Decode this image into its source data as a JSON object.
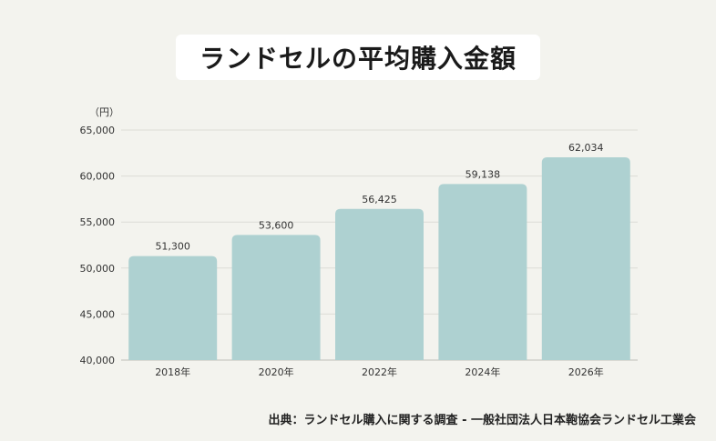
{
  "title": "ランドセルの平均購入金額",
  "source": "出典：ランドセル購入に関する調査 - 一般社団法人日本鞄協会ランドセル工業会",
  "colors": {
    "bar": "#aed1d1",
    "grid": "#dcdcd6",
    "axis": "#bfbfb8",
    "text": "#333333"
  },
  "chart_data": {
    "type": "bar",
    "title": "ランドセルの平均購入金額",
    "unit_label": "（円）",
    "categories": [
      "2018年",
      "2020年",
      "2022年",
      "2024年",
      "2026年"
    ],
    "values": [
      51300,
      53600,
      56425,
      59138,
      62034
    ],
    "data_labels": [
      "51,300",
      "53,600",
      "56,425",
      "59,138",
      "62,034"
    ],
    "ylim": [
      40000,
      65000
    ],
    "yticks": [
      40000,
      45000,
      50000,
      55000,
      60000,
      65000
    ],
    "ytick_labels": [
      "40,000",
      "45,000",
      "50,000",
      "55,000",
      "60,000",
      "65,000"
    ],
    "grid": true
  }
}
